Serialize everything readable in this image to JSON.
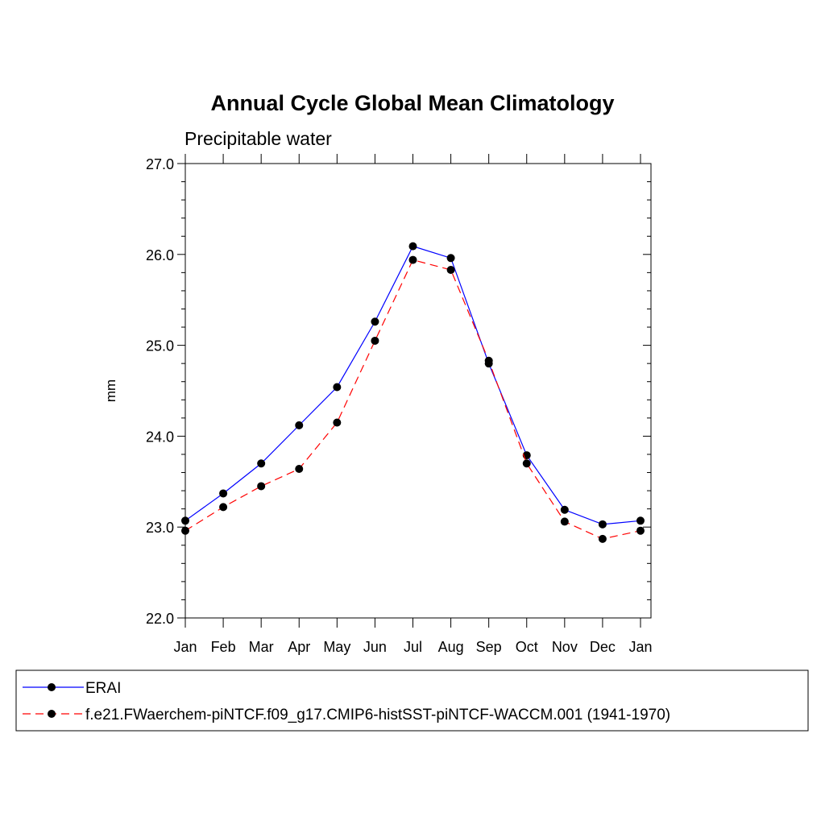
{
  "chart_data": {
    "type": "line",
    "title": "Annual Cycle Global Mean Climatology",
    "subtitle": "Precipitable water",
    "xlabel": "",
    "ylabel": "mm",
    "categories": [
      "Jan",
      "Feb",
      "Mar",
      "Apr",
      "May",
      "Jun",
      "Jul",
      "Aug",
      "Sep",
      "Oct",
      "Nov",
      "Dec",
      "Jan"
    ],
    "ylim": [
      22.0,
      27.0
    ],
    "yticks": [
      "22.0",
      "23.0",
      "24.0",
      "25.0",
      "26.0",
      "27.0"
    ],
    "grid": false,
    "legend_position": "bottom",
    "series": [
      {
        "name": "ERAI",
        "color": "#0000ff",
        "dash": "solid",
        "values": [
          23.07,
          23.37,
          23.7,
          24.12,
          24.54,
          25.26,
          26.09,
          25.96,
          24.8,
          23.79,
          23.19,
          23.03,
          23.07
        ]
      },
      {
        "name": "f.e21.FWaerchem-piNTCF.f09_g17.CMIP6-histSST-piNTCF-WACCM.001 (1941-1970)",
        "color": "#ff0000",
        "dash": "dashed",
        "values": [
          22.96,
          23.22,
          23.45,
          23.64,
          24.15,
          25.05,
          25.94,
          25.83,
          24.83,
          23.7,
          23.06,
          22.87,
          22.96
        ]
      }
    ]
  }
}
